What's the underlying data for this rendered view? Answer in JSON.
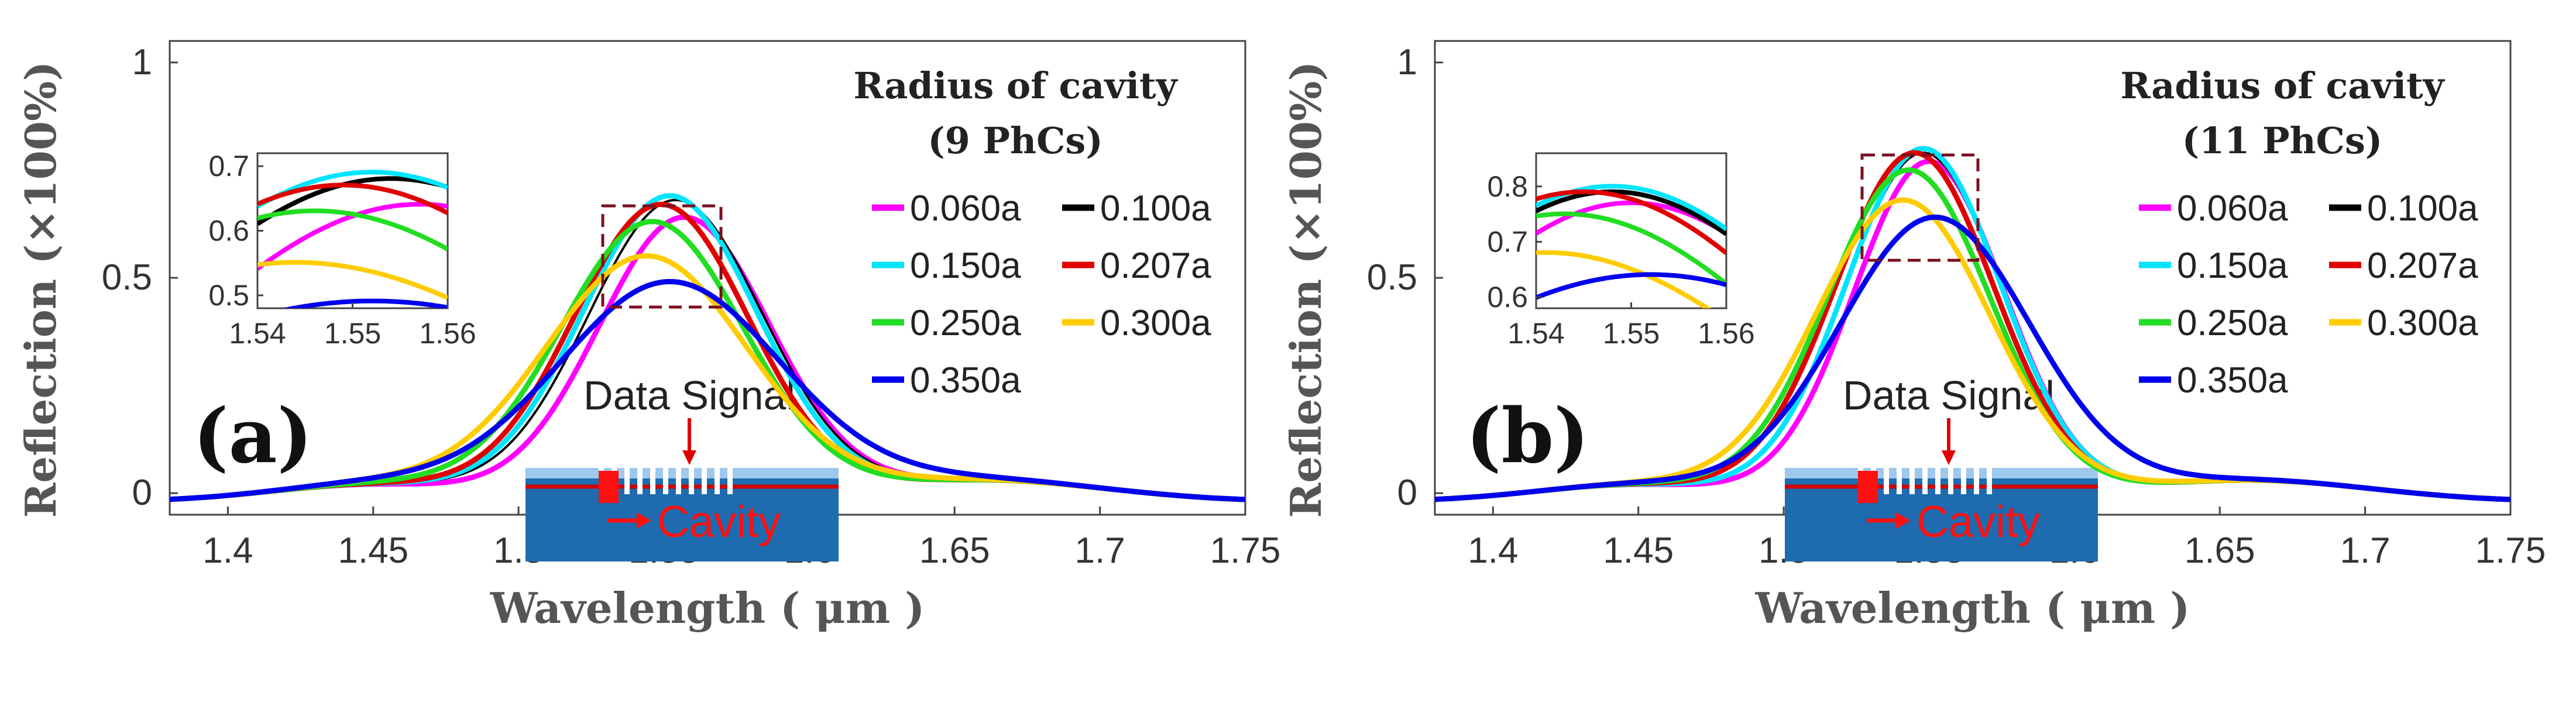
{
  "chart_data": [
    {
      "type": "line",
      "panel_label": "(a)",
      "xlabel": "Wavelength ( μm )",
      "ylabel": "Reflection (×100%)",
      "xlim": [
        1.38,
        1.75
      ],
      "ylim": [
        -0.05,
        1.05
      ],
      "xticks": [
        "1.4",
        "1.45",
        "1.5",
        "1.55",
        "1.6",
        "1.65",
        "1.7",
        "1.75"
      ],
      "yticks": [
        "0",
        "0.5",
        "1"
      ],
      "legend_title": [
        "Radius of cavity",
        "(9 PhCs)"
      ],
      "inset": {
        "xlim": [
          1.54,
          1.56
        ],
        "ylim": [
          0.48,
          0.72
        ],
        "xticks": [
          "1.54",
          "1.55",
          "1.56"
        ],
        "yticks": [
          "0.5",
          "0.6",
          "0.7"
        ]
      },
      "schematic": {
        "label_top": "Data Signal",
        "label_bottom": "Cavity"
      },
      "series": [
        {
          "name": "0.060a",
          "color": "#ff00ff",
          "center": 1.557,
          "peak": 0.66,
          "width": 0.042
        },
        {
          "name": "0.100a",
          "color": "#000000",
          "center": 1.554,
          "peak": 0.7,
          "width": 0.043
        },
        {
          "name": "0.150a",
          "color": "#00e5ff",
          "center": 1.552,
          "peak": 0.71,
          "width": 0.043
        },
        {
          "name": "0.207a",
          "color": "#e00000",
          "center": 1.549,
          "peak": 0.69,
          "width": 0.043
        },
        {
          "name": "0.250a",
          "color": "#22dd22",
          "center": 1.546,
          "peak": 0.65,
          "width": 0.045
        },
        {
          "name": "0.300a",
          "color": "#ffcc00",
          "center": 1.544,
          "peak": 0.57,
          "width": 0.05
        },
        {
          "name": "0.350a",
          "color": "#0000ee",
          "center": 1.552,
          "peak": 0.51,
          "width": 0.055
        }
      ]
    },
    {
      "type": "line",
      "panel_label": "(b)",
      "xlabel": "Wavelength ( μm )",
      "ylabel": "Reflection (×100%)",
      "xlim": [
        1.38,
        1.75
      ],
      "ylim": [
        -0.05,
        1.05
      ],
      "xticks": [
        "1.4",
        "1.45",
        "1.5",
        "1.55",
        "1.6",
        "1.65",
        "1.7",
        "1.75"
      ],
      "yticks": [
        "0",
        "0.5",
        "1"
      ],
      "legend_title": [
        "Radius of cavity",
        "(11 PhCs)"
      ],
      "inset": {
        "xlim": [
          1.54,
          1.56
        ],
        "ylim": [
          0.58,
          0.86
        ],
        "xticks": [
          "1.54",
          "1.55",
          "1.56"
        ],
        "yticks": [
          "0.6",
          "0.7",
          "0.8"
        ]
      },
      "schematic": {
        "label_top": "Data Signal",
        "label_bottom": "Cavity"
      },
      "series": [
        {
          "name": "0.060a",
          "color": "#ff00ff",
          "center": 1.55,
          "peak": 0.79,
          "width": 0.037
        },
        {
          "name": "0.100a",
          "color": "#000000",
          "center": 1.548,
          "peak": 0.81,
          "width": 0.038
        },
        {
          "name": "0.150a",
          "color": "#00e5ff",
          "center": 1.548,
          "peak": 0.82,
          "width": 0.038
        },
        {
          "name": "0.207a",
          "color": "#e00000",
          "center": 1.545,
          "peak": 0.81,
          "width": 0.039
        },
        {
          "name": "0.250a",
          "color": "#22dd22",
          "center": 1.543,
          "peak": 0.77,
          "width": 0.04
        },
        {
          "name": "0.300a",
          "color": "#ffcc00",
          "center": 1.541,
          "peak": 0.7,
          "width": 0.043
        },
        {
          "name": "0.350a",
          "color": "#0000ee",
          "center": 1.552,
          "peak": 0.66,
          "width": 0.047
        }
      ]
    }
  ]
}
